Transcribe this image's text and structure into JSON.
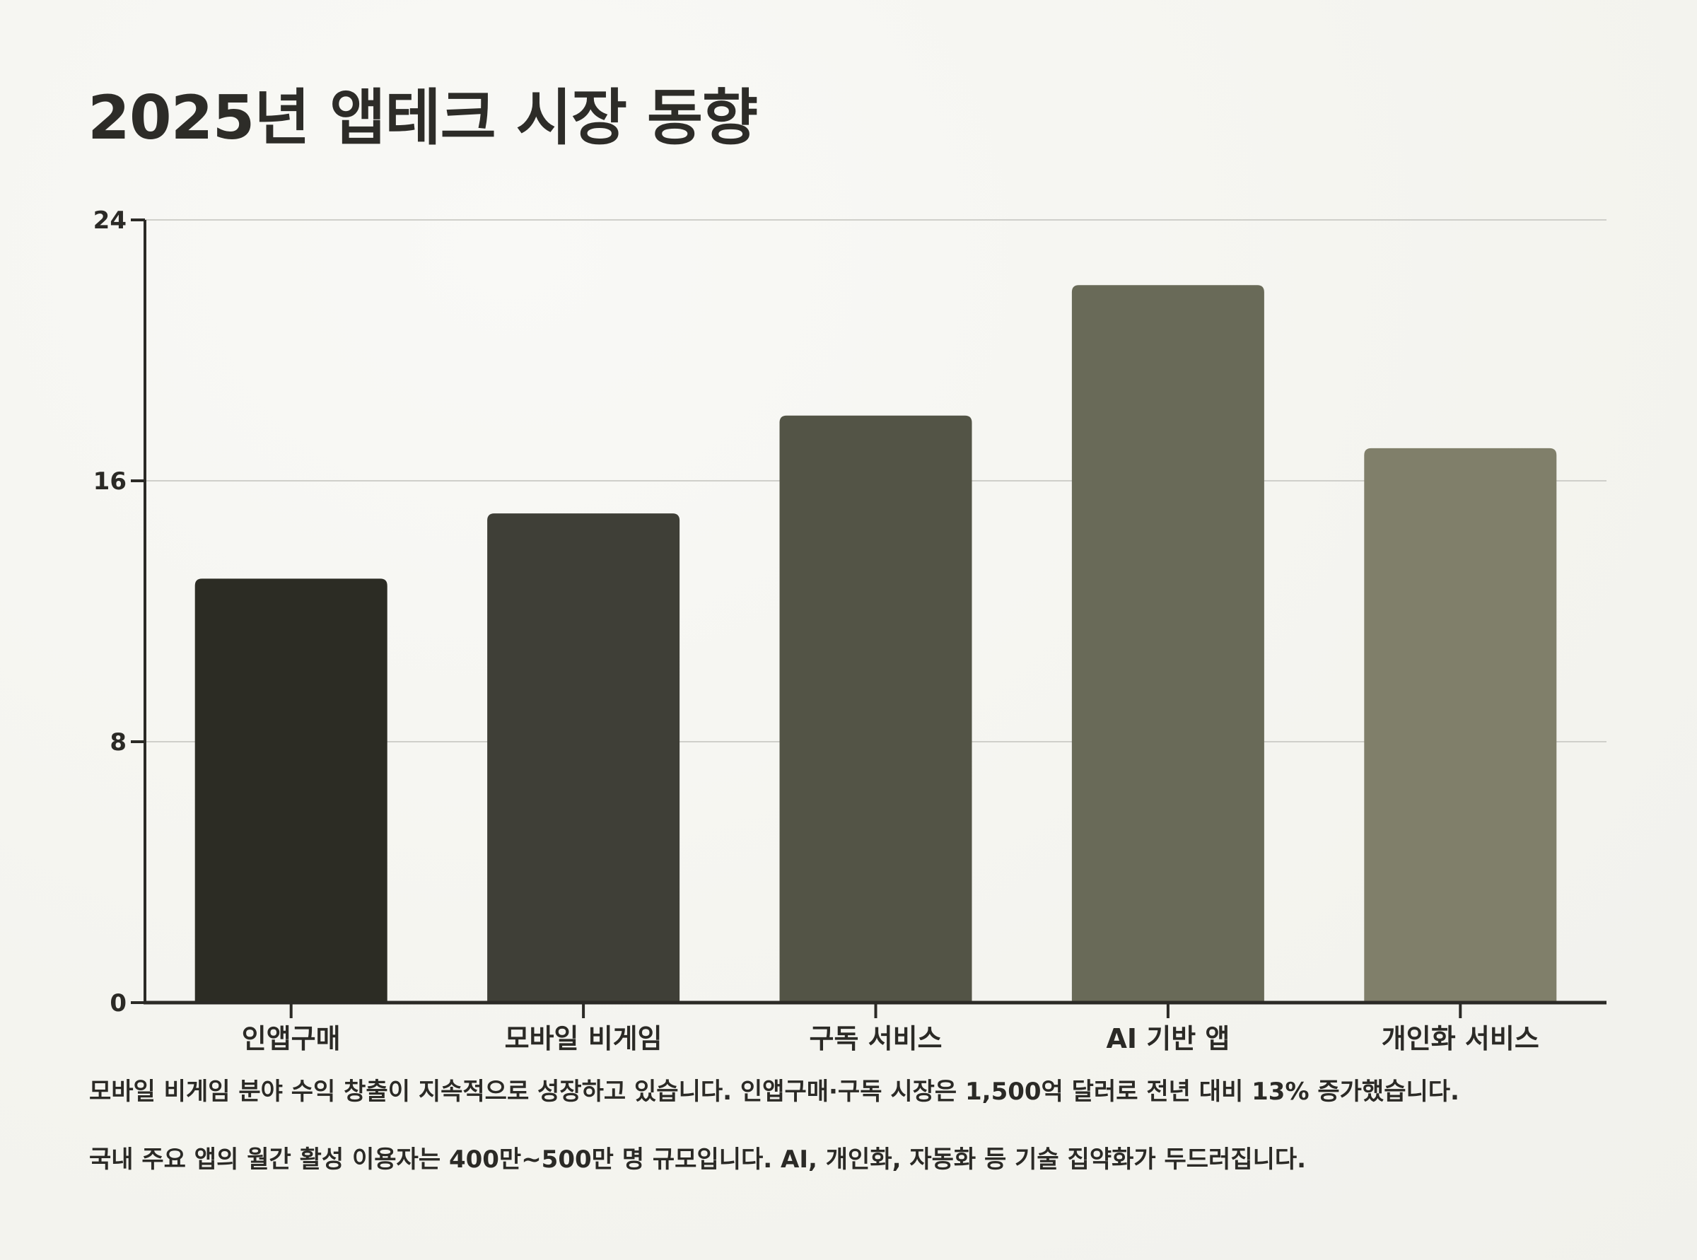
{
  "title": "2025년 앱테크 시장 동향",
  "chart_data": {
    "type": "bar",
    "categories": [
      "인앱구매",
      "모바일 비게임",
      "구독 서비스",
      "AI 기반 앱",
      "개인화 서비스"
    ],
    "values": [
      13,
      15,
      18,
      22,
      17
    ],
    "ylim": [
      0,
      24
    ],
    "yticks": [
      "0",
      "8",
      "16",
      "24"
    ],
    "colors": [
      "#2c2c24",
      "#3f3f37",
      "#535446",
      "#696a58",
      "#807f6a"
    ],
    "grid": true,
    "xlabel": "",
    "ylabel": ""
  },
  "notes": [
    "모바일 비게임 분야 수익 창출이 지속적으로 성장하고 있습니다. 인앱구매·구독 시장은 1,500억 달러로 전년 대비 13% 증가했습니다.",
    "국내 주요 앱의 월간 활성 이용자는 400만~500만 명 규모입니다. AI, 개인화, 자동화 등 기술 집약화가 두드러집니다."
  ]
}
